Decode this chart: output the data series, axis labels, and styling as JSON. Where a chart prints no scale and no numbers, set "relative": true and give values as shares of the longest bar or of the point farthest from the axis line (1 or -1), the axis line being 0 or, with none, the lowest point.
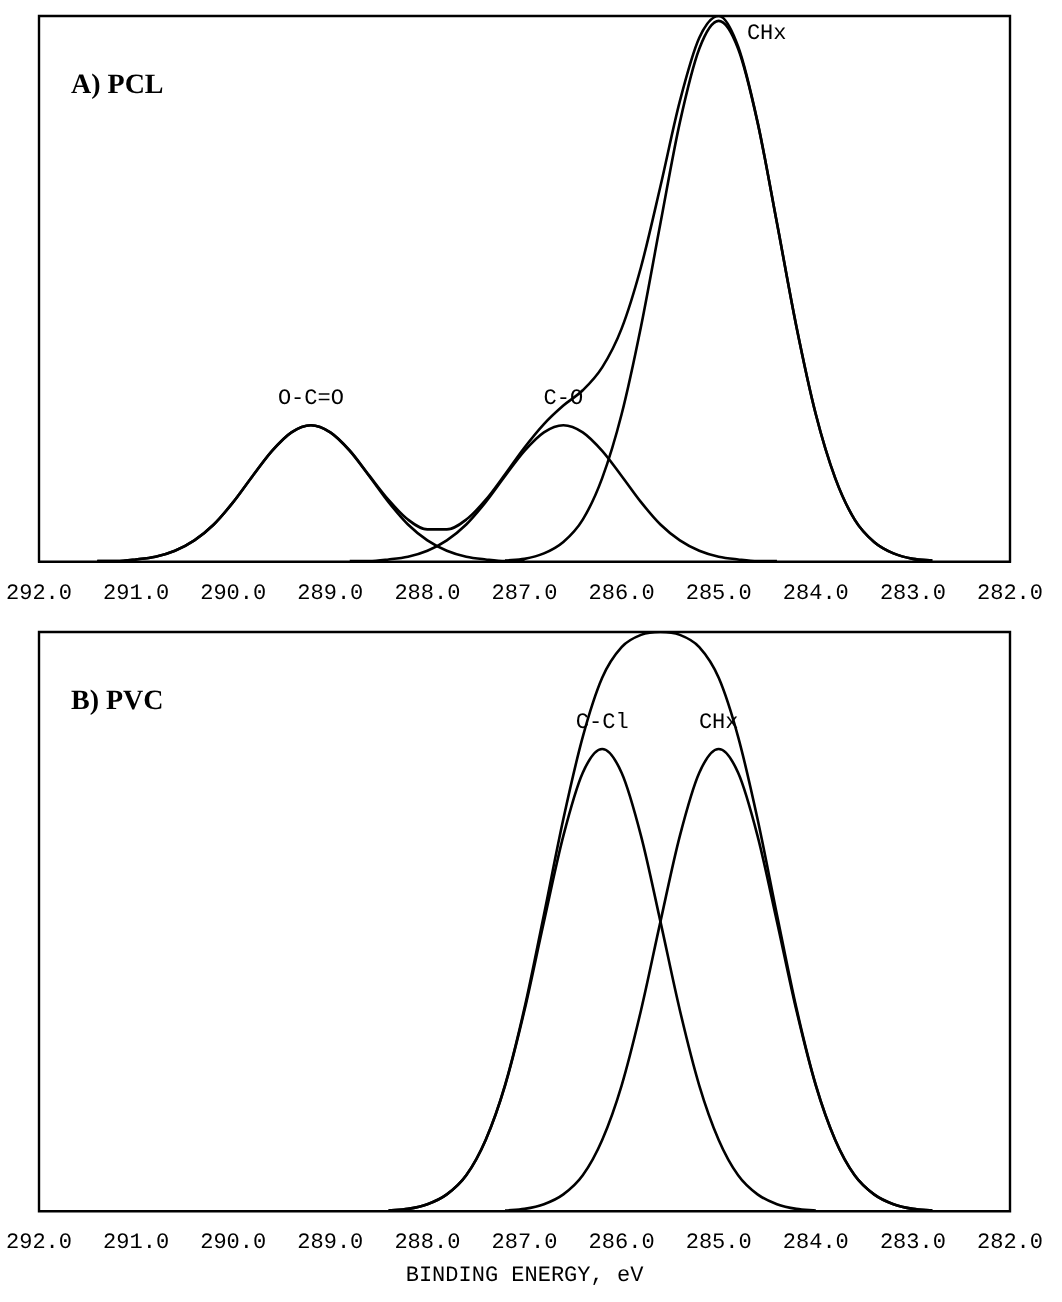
{
  "chart_data": [
    {
      "type": "line",
      "title": "A) PCL",
      "relative": true,
      "legend": false,
      "marker": "none",
      "grid": false,
      "xlim": [
        292,
        282
      ],
      "xticks": [
        {
          "value": 292,
          "label": "292.0"
        },
        {
          "value": 291,
          "label": "291.0"
        },
        {
          "value": 290,
          "label": "290.0"
        },
        {
          "value": 289,
          "label": "289.0"
        },
        {
          "value": 288,
          "label": "288.0"
        },
        {
          "value": 287,
          "label": "287.0"
        },
        {
          "value": 286,
          "label": "286.0"
        },
        {
          "value": 285,
          "label": "285.0"
        },
        {
          "value": 284,
          "label": "284.0"
        },
        {
          "value": 283,
          "label": "283.0"
        },
        {
          "value": 282,
          "label": "282.0"
        }
      ],
      "series": [
        {
          "color": "#000000",
          "x": [
            291.4,
            291.2,
            291.0,
            290.8,
            290.6,
            290.4,
            290.2,
            290.0,
            289.8,
            289.6,
            289.4,
            289.2,
            289.0,
            288.8,
            288.6,
            288.4,
            288.2,
            288.0,
            287.8,
            287.6,
            287.4,
            287.2,
            287.0,
            286.8,
            286.6,
            286.4,
            286.2,
            286.0,
            285.8,
            285.6,
            285.4,
            285.2,
            285.0,
            284.8,
            284.6,
            284.4,
            284.2,
            284.0,
            283.8,
            283.6,
            283.4,
            283.2,
            283.0,
            282.8
          ],
          "values": [
            0.001,
            0.001,
            0.004,
            0.009,
            0.02,
            0.039,
            0.068,
            0.109,
            0.157,
            0.203,
            0.237,
            0.25,
            0.237,
            0.204,
            0.158,
            0.113,
            0.077,
            0.059,
            0.059,
            0.077,
            0.113,
            0.16,
            0.209,
            0.252,
            0.286,
            0.314,
            0.356,
            0.427,
            0.54,
            0.688,
            0.844,
            0.96,
            1.0,
            0.944,
            0.806,
            0.621,
            0.431,
            0.27,
            0.153,
            0.077,
            0.036,
            0.015,
            0.005,
            0.002
          ]
        },
        {
          "name": "O-C=O",
          "color": "#000000",
          "x": [
            291.4,
            291.2,
            291.0,
            290.8,
            290.6,
            290.4,
            290.2,
            290.0,
            289.8,
            289.6,
            289.4,
            289.2,
            289.0,
            288.8,
            288.6,
            288.4,
            288.2,
            288.0,
            287.8,
            287.6,
            287.4,
            287.2,
            287.0
          ],
          "values": [
            0.001,
            0.001,
            0.004,
            0.009,
            0.02,
            0.039,
            0.068,
            0.109,
            0.157,
            0.203,
            0.237,
            0.25,
            0.237,
            0.203,
            0.157,
            0.109,
            0.068,
            0.039,
            0.02,
            0.009,
            0.004,
            0.001,
            0.001
          ]
        },
        {
          "name": "C-O",
          "color": "#000000",
          "x": [
            288.8,
            288.6,
            288.4,
            288.2,
            288.0,
            287.8,
            287.6,
            287.4,
            287.2,
            287.0,
            286.8,
            286.6,
            286.4,
            286.2,
            286.0,
            285.8,
            285.6,
            285.4,
            285.2,
            285.0,
            284.8,
            284.6,
            284.4
          ],
          "values": [
            0.001,
            0.001,
            0.004,
            0.009,
            0.02,
            0.039,
            0.068,
            0.109,
            0.157,
            0.203,
            0.237,
            0.25,
            0.237,
            0.203,
            0.157,
            0.109,
            0.068,
            0.039,
            0.02,
            0.009,
            0.004,
            0.001,
            0.001
          ]
        },
        {
          "name": "CHx",
          "color": "#000000",
          "x": [
            287.2,
            287.0,
            286.8,
            286.6,
            286.4,
            286.2,
            286.0,
            285.8,
            285.6,
            285.4,
            285.2,
            285.0,
            284.8,
            284.6,
            284.4,
            284.2,
            284.0,
            283.8,
            283.6,
            283.4,
            283.2,
            283.0,
            282.8
          ],
          "values": [
            0.002,
            0.005,
            0.015,
            0.036,
            0.077,
            0.153,
            0.27,
            0.431,
            0.62,
            0.805,
            0.94,
            0.991,
            0.94,
            0.805,
            0.62,
            0.431,
            0.27,
            0.153,
            0.077,
            0.036,
            0.015,
            0.005,
            0.002
          ]
        }
      ]
    },
    {
      "type": "line",
      "title": "B) PVC",
      "xlabel": "BINDING ENERGY, eV",
      "relative": true,
      "legend": false,
      "marker": "none",
      "grid": false,
      "xlim": [
        292,
        282
      ],
      "xticks": [
        {
          "value": 292,
          "label": "292.0"
        },
        {
          "value": 291,
          "label": "291.0"
        },
        {
          "value": 290,
          "label": "290.0"
        },
        {
          "value": 289,
          "label": "289.0"
        },
        {
          "value": 288,
          "label": "288.0"
        },
        {
          "value": 287,
          "label": "287.0"
        },
        {
          "value": 286,
          "label": "286.0"
        },
        {
          "value": 285,
          "label": "285.0"
        },
        {
          "value": 284,
          "label": "284.0"
        },
        {
          "value": 283,
          "label": "283.0"
        },
        {
          "value": 282,
          "label": "282.0"
        }
      ],
      "series": [
        {
          "color": "#000000",
          "x": [
            288.4,
            288.2,
            288.0,
            287.8,
            287.6,
            287.4,
            287.2,
            287.0,
            286.8,
            286.6,
            286.4,
            286.2,
            286.0,
            285.8,
            285.6,
            285.4,
            285.2,
            285.0,
            284.8,
            284.6,
            284.4,
            284.2,
            284.0,
            283.8,
            283.6,
            283.4,
            283.2,
            283.0,
            282.8
          ],
          "values": [
            0.001,
            0.004,
            0.012,
            0.029,
            0.062,
            0.123,
            0.218,
            0.351,
            0.512,
            0.677,
            0.819,
            0.921,
            0.974,
            0.995,
            1.0,
            0.995,
            0.974,
            0.921,
            0.819,
            0.677,
            0.512,
            0.351,
            0.218,
            0.123,
            0.062,
            0.029,
            0.012,
            0.004,
            0.001
          ]
        },
        {
          "name": "C-Cl",
          "color": "#000000",
          "x": [
            288.4,
            288.2,
            288.0,
            287.8,
            287.6,
            287.4,
            287.2,
            287.0,
            286.8,
            286.6,
            286.4,
            286.2,
            286.0,
            285.8,
            285.6,
            285.4,
            285.2,
            285.0,
            284.8,
            284.6,
            284.4,
            284.2,
            284.0
          ],
          "values": [
            0.001,
            0.004,
            0.012,
            0.029,
            0.062,
            0.123,
            0.217,
            0.347,
            0.5,
            0.648,
            0.757,
            0.798,
            0.757,
            0.648,
            0.5,
            0.347,
            0.217,
            0.123,
            0.062,
            0.029,
            0.012,
            0.004,
            0.001
          ]
        },
        {
          "name": "CHx",
          "color": "#000000",
          "x": [
            287.2,
            287.0,
            286.8,
            286.6,
            286.4,
            286.2,
            286.0,
            285.8,
            285.6,
            285.4,
            285.2,
            285.0,
            284.8,
            284.6,
            284.4,
            284.2,
            284.0,
            283.8,
            283.6,
            283.4,
            283.2,
            283.0,
            282.8
          ],
          "values": [
            0.001,
            0.004,
            0.012,
            0.029,
            0.062,
            0.123,
            0.217,
            0.347,
            0.5,
            0.648,
            0.757,
            0.798,
            0.757,
            0.648,
            0.5,
            0.347,
            0.217,
            0.123,
            0.062,
            0.029,
            0.012,
            0.004,
            0.001
          ]
        }
      ]
    }
  ]
}
